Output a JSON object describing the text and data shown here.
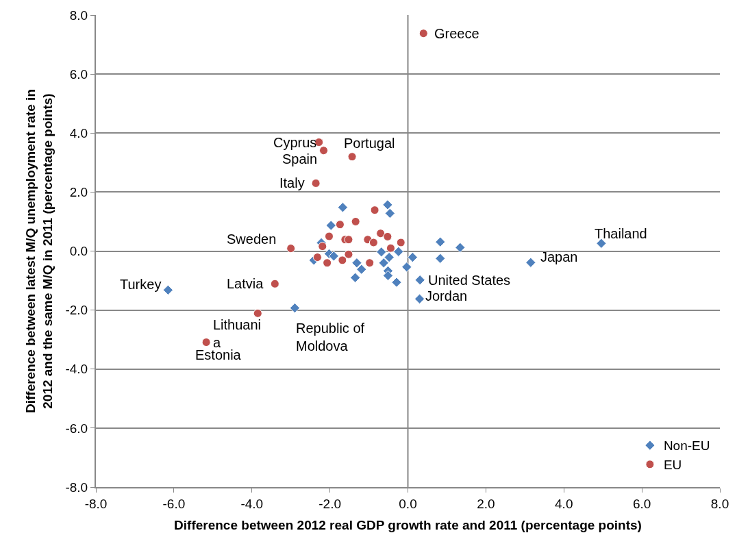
{
  "chart_data": {
    "type": "scatter",
    "xlabel": "Difference between 2012 real GDP growth rate and 2011 (percentage points)",
    "ylabel": "Difference between latest M/Q unemployment rate in\n2012 and the same M/Q in 2011 (percentage points)",
    "xlim": [
      -8,
      8
    ],
    "ylim": [
      -8,
      8
    ],
    "xticks": [
      {
        "value": -8,
        "label": "-8.0"
      },
      {
        "value": -6,
        "label": "-6.0"
      },
      {
        "value": -4,
        "label": "-4.0"
      },
      {
        "value": -2,
        "label": "-2.0"
      },
      {
        "value": 0,
        "label": "0.0"
      },
      {
        "value": 2,
        "label": "2.0"
      },
      {
        "value": 4,
        "label": "4.0"
      },
      {
        "value": 6,
        "label": "6.0"
      },
      {
        "value": 8,
        "label": "8.0"
      }
    ],
    "yticks": [
      {
        "value": -8,
        "label": "-8.0"
      },
      {
        "value": -6,
        "label": "-6.0"
      },
      {
        "value": -4,
        "label": "-4.0"
      },
      {
        "value": -2,
        "label": "-2.0"
      },
      {
        "value": 0,
        "label": "0.0"
      },
      {
        "value": 2,
        "label": "2.0"
      },
      {
        "value": 4,
        "label": "4.0"
      },
      {
        "value": 6,
        "label": "6.0"
      },
      {
        "value": 8,
        "label": "8.0"
      }
    ],
    "grid": "y",
    "legend": "bottom right",
    "ref_lines": [
      {
        "axis": "x",
        "value": 0,
        "color": "#888888"
      }
    ],
    "series": [
      {
        "name": "Non-EU",
        "color": "#4f81bd",
        "marker": "diamond",
        "x": [
          -1.67,
          -0.52,
          -0.46,
          -1.97,
          -2.22,
          -2.41,
          -2.02,
          -1.9,
          -0.68,
          -0.24,
          -0.48,
          -0.62,
          -1.31,
          -1.19,
          -1.35,
          -0.51,
          -0.51,
          -0.29,
          0.12,
          -0.03,
          -2.9,
          0.83,
          0.83,
          0.31,
          0.3,
          1.34,
          3.15,
          4.96,
          -6.15
        ],
        "values": [
          1.48,
          1.57,
          1.28,
          0.87,
          0.28,
          -0.31,
          -0.09,
          -0.17,
          -0.03,
          -0.02,
          -0.21,
          -0.4,
          -0.4,
          -0.62,
          -0.9,
          -0.67,
          -0.83,
          -1.06,
          -0.21,
          -0.54,
          -1.93,
          0.31,
          -0.25,
          -0.98,
          -1.62,
          0.12,
          -0.39,
          0.26,
          -1.32
        ]
      },
      {
        "name": "EU",
        "color": "#c0504d",
        "marker": "circle",
        "x": [
          -2.36,
          -0.85,
          -1.74,
          -1.34,
          -2.02,
          -1.61,
          -1.52,
          -1.03,
          -0.88,
          -0.7,
          -0.52,
          -0.18,
          -0.44,
          -2.19,
          -3.0,
          -2.32,
          -2.07,
          -1.68,
          -1.52,
          -0.98,
          -3.41,
          0.4,
          -2.28,
          -2.16,
          -1.43,
          -3.85,
          -5.17
        ],
        "values": [
          2.3,
          1.39,
          0.9,
          1.0,
          0.5,
          0.39,
          0.39,
          0.39,
          0.29,
          0.6,
          0.49,
          0.29,
          0.1,
          0.16,
          0.09,
          -0.21,
          -0.4,
          -0.31,
          -0.11,
          -0.4,
          -1.11,
          7.38,
          3.69,
          3.41,
          3.2,
          -2.11,
          -3.09
        ]
      }
    ],
    "annotations": [
      {
        "text": "Greece",
        "x": 0.4,
        "y": 7.38
      },
      {
        "text": "Cyprus",
        "x": -2.28,
        "y": 3.69
      },
      {
        "text": "Spain",
        "x": -2.16,
        "y": 3.41
      },
      {
        "text": "Portugal",
        "x": -1.43,
        "y": 3.2
      },
      {
        "text": "Italy",
        "x": -2.36,
        "y": 2.3
      },
      {
        "text": "Sweden",
        "x": -3.0,
        "y": 0.09
      },
      {
        "text": "Thailand",
        "x": 4.96,
        "y": 0.26
      },
      {
        "text": "Turkey",
        "x": -6.15,
        "y": -1.32
      },
      {
        "text": "Latvia",
        "x": -3.41,
        "y": -1.11
      },
      {
        "text": "United States",
        "x": 0.31,
        "y": -0.98
      },
      {
        "text": "Japan",
        "x": 3.15,
        "y": -0.39
      },
      {
        "text": "Jordan",
        "x": 0.3,
        "y": -1.62
      },
      {
        "text": "Lithuani\na",
        "x": -3.85,
        "y": -2.11
      },
      {
        "text": "Republic of\nMoldova",
        "x": -2.9,
        "y": -1.93
      },
      {
        "text": "Estonia",
        "x": -5.17,
        "y": -3.09
      }
    ]
  }
}
